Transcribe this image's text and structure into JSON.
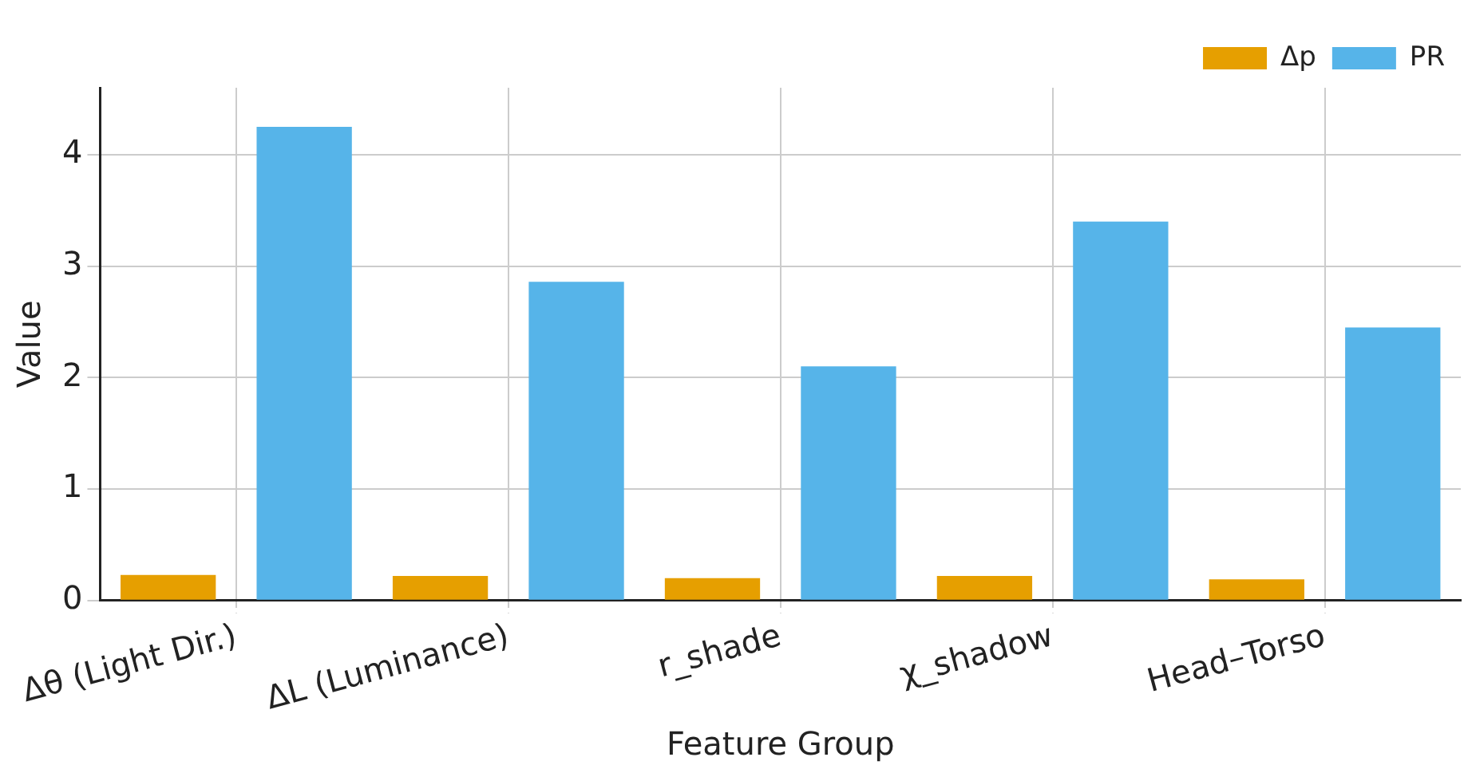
{
  "chart_data": {
    "type": "bar",
    "xlabel": "Feature Group",
    "ylabel": "Value",
    "categories": [
      "Δθ (Light Dir.)",
      "ΔL (Luminance)",
      "r_shade",
      "χ_shadow",
      "Head–Torso"
    ],
    "series": [
      {
        "name": "Δp",
        "color": "#e69f00",
        "values": [
          0.23,
          0.22,
          0.2,
          0.22,
          0.19
        ]
      },
      {
        "name": "PR",
        "color": "#56b4e9",
        "values": [
          4.25,
          2.86,
          2.1,
          3.4,
          2.45
        ]
      }
    ],
    "ylim": [
      0,
      4.6
    ],
    "yticks": [
      0,
      1,
      2,
      3,
      4
    ],
    "grid": true,
    "legend": "top right"
  }
}
